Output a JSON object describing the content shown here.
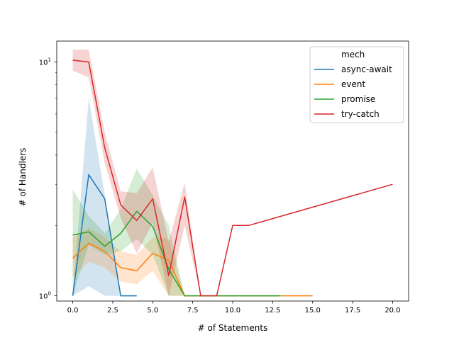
{
  "chart_data": {
    "type": "line",
    "title": "",
    "xlabel": "# of Statements",
    "ylabel": "# of Handlers",
    "xlim": [
      -1.0,
      21.0
    ],
    "ylim": [
      0.95,
      12.3
    ],
    "yscale": "log",
    "grid": false,
    "legend": {
      "title": "mech",
      "placement": "top-right"
    },
    "x_ticks": [
      {
        "value": 0,
        "label": "0.0"
      },
      {
        "value": 2.5,
        "label": "2.5"
      },
      {
        "value": 5,
        "label": "5.0"
      },
      {
        "value": 7.5,
        "label": "7.5"
      },
      {
        "value": 10,
        "label": "10.0"
      },
      {
        "value": 12.5,
        "label": "12.5"
      },
      {
        "value": 15,
        "label": "15.0"
      },
      {
        "value": 17.5,
        "label": "17.5"
      },
      {
        "value": 20,
        "label": "20.0"
      }
    ],
    "y_ticks": [
      {
        "value": 1,
        "base": "10",
        "exp": "0"
      },
      {
        "value": 10,
        "base": "10",
        "exp": "1"
      }
    ],
    "series": [
      {
        "name": "async-await",
        "color": "#1f77b4",
        "x": [
          0,
          1,
          2,
          3,
          4
        ],
        "y": [
          1.0,
          3.3,
          2.6,
          1.0,
          1.0
        ],
        "ci_low": [
          1.0,
          1.1,
          1.0,
          1.0,
          1.0
        ],
        "ci_high": [
          1.0,
          7.0,
          2.7,
          1.0,
          1.0
        ]
      },
      {
        "name": "event",
        "color": "#ff7f0e",
        "x": [
          0,
          1,
          2,
          3,
          4,
          5,
          6,
          7,
          8,
          9,
          10,
          11,
          12,
          13,
          14,
          15
        ],
        "y": [
          1.45,
          1.68,
          1.55,
          1.32,
          1.28,
          1.52,
          1.42,
          1.0,
          1.0,
          1.0,
          1.0,
          1.0,
          1.0,
          1.0,
          1.0,
          1.0
        ],
        "ci_low": [
          1.2,
          1.4,
          1.32,
          1.15,
          1.12,
          1.28,
          1.0,
          1.0,
          1.0,
          1.0,
          1.0,
          1.0,
          1.0,
          1.0,
          1.0,
          1.0
        ],
        "ci_high": [
          1.78,
          1.95,
          1.78,
          1.55,
          1.5,
          1.78,
          1.75,
          1.0,
          1.0,
          1.0,
          1.0,
          1.0,
          1.0,
          1.0,
          1.0,
          1.0
        ]
      },
      {
        "name": "promise",
        "color": "#2ca02c",
        "x": [
          0,
          1,
          2,
          3,
          4,
          5,
          6,
          7,
          8,
          9,
          10,
          11,
          12,
          13
        ],
        "y": [
          1.82,
          1.88,
          1.63,
          1.85,
          2.3,
          1.98,
          1.3,
          1.0,
          1.0,
          1.0,
          1.0,
          1.0,
          1.0,
          1.0
        ],
        "ci_low": [
          1.0,
          1.65,
          1.5,
          1.55,
          1.75,
          1.5,
          1.0,
          1.0,
          1.0,
          1.0,
          1.0,
          1.0,
          1.0,
          1.0
        ],
        "ci_high": [
          2.85,
          2.2,
          1.85,
          2.35,
          3.5,
          2.7,
          2.0,
          1.0,
          1.0,
          1.0,
          1.0,
          1.0,
          1.0,
          1.0
        ]
      },
      {
        "name": "try-catch",
        "color": "#d62728",
        "x": [
          0,
          1,
          2,
          3,
          4,
          5,
          6,
          7,
          8,
          9,
          10,
          11,
          20
        ],
        "y": [
          10.2,
          10.0,
          4.3,
          2.45,
          2.1,
          2.6,
          1.22,
          2.65,
          1.0,
          1.0,
          2.0,
          2.0,
          3.0
        ],
        "ci_low": [
          9.2,
          8.6,
          3.7,
          2.15,
          1.52,
          2.05,
          1.0,
          2.0,
          1.0,
          1.0,
          2.0,
          2.0,
          3.0
        ],
        "ci_high": [
          11.3,
          11.3,
          5.0,
          2.8,
          2.75,
          3.55,
          1.7,
          3.05,
          1.0,
          1.0,
          2.0,
          2.0,
          3.0
        ]
      }
    ]
  }
}
